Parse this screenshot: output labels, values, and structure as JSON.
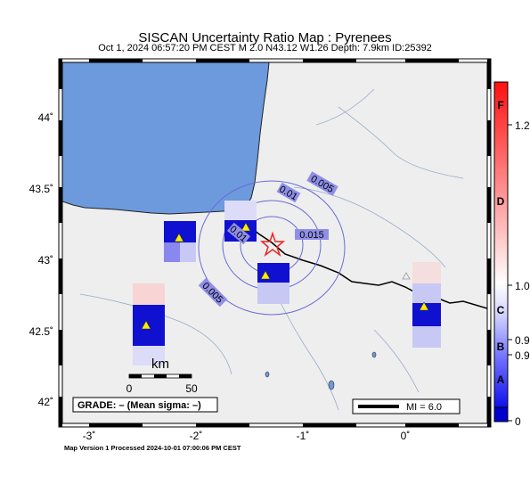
{
  "title": "SISCAN Uncertainty Ratio Map : Pyrenees",
  "subtitle": "Oct  1, 2024 06:57:20 PM CEST   M 2.0   N43.12 W1.26   Depth: 7.9km   ID:25392",
  "footer": "Map Version 1 Processed 2024-10-01 07:00:06 PM CEST",
  "axes": {
    "x_ticks": [
      "-3˚",
      "-2˚",
      "-1˚",
      "0˚"
    ],
    "y_ticks": [
      "44˚",
      "43.5˚",
      "43˚",
      "42.5˚",
      "42˚"
    ]
  },
  "contours": [
    "0.005",
    "0.01",
    "0.015",
    "0.01",
    "0.005"
  ],
  "scalebar": {
    "unit": "km",
    "min": "0",
    "max": "50"
  },
  "grade": "GRADE: – (Mean sigma: –)",
  "mi_legend": "MI = 6.0",
  "colorbar": {
    "letters": [
      "F",
      "D",
      "C",
      "B",
      "A"
    ],
    "values": [
      "1.2",
      "1.0",
      "0.9",
      "0.9",
      "0"
    ]
  },
  "colors": {
    "land": "#eeeeee",
    "sea": "#6d99dd",
    "contour": "#6a6ad8",
    "station_block": "#1010d0",
    "epicenter": "#ee2222"
  }
}
